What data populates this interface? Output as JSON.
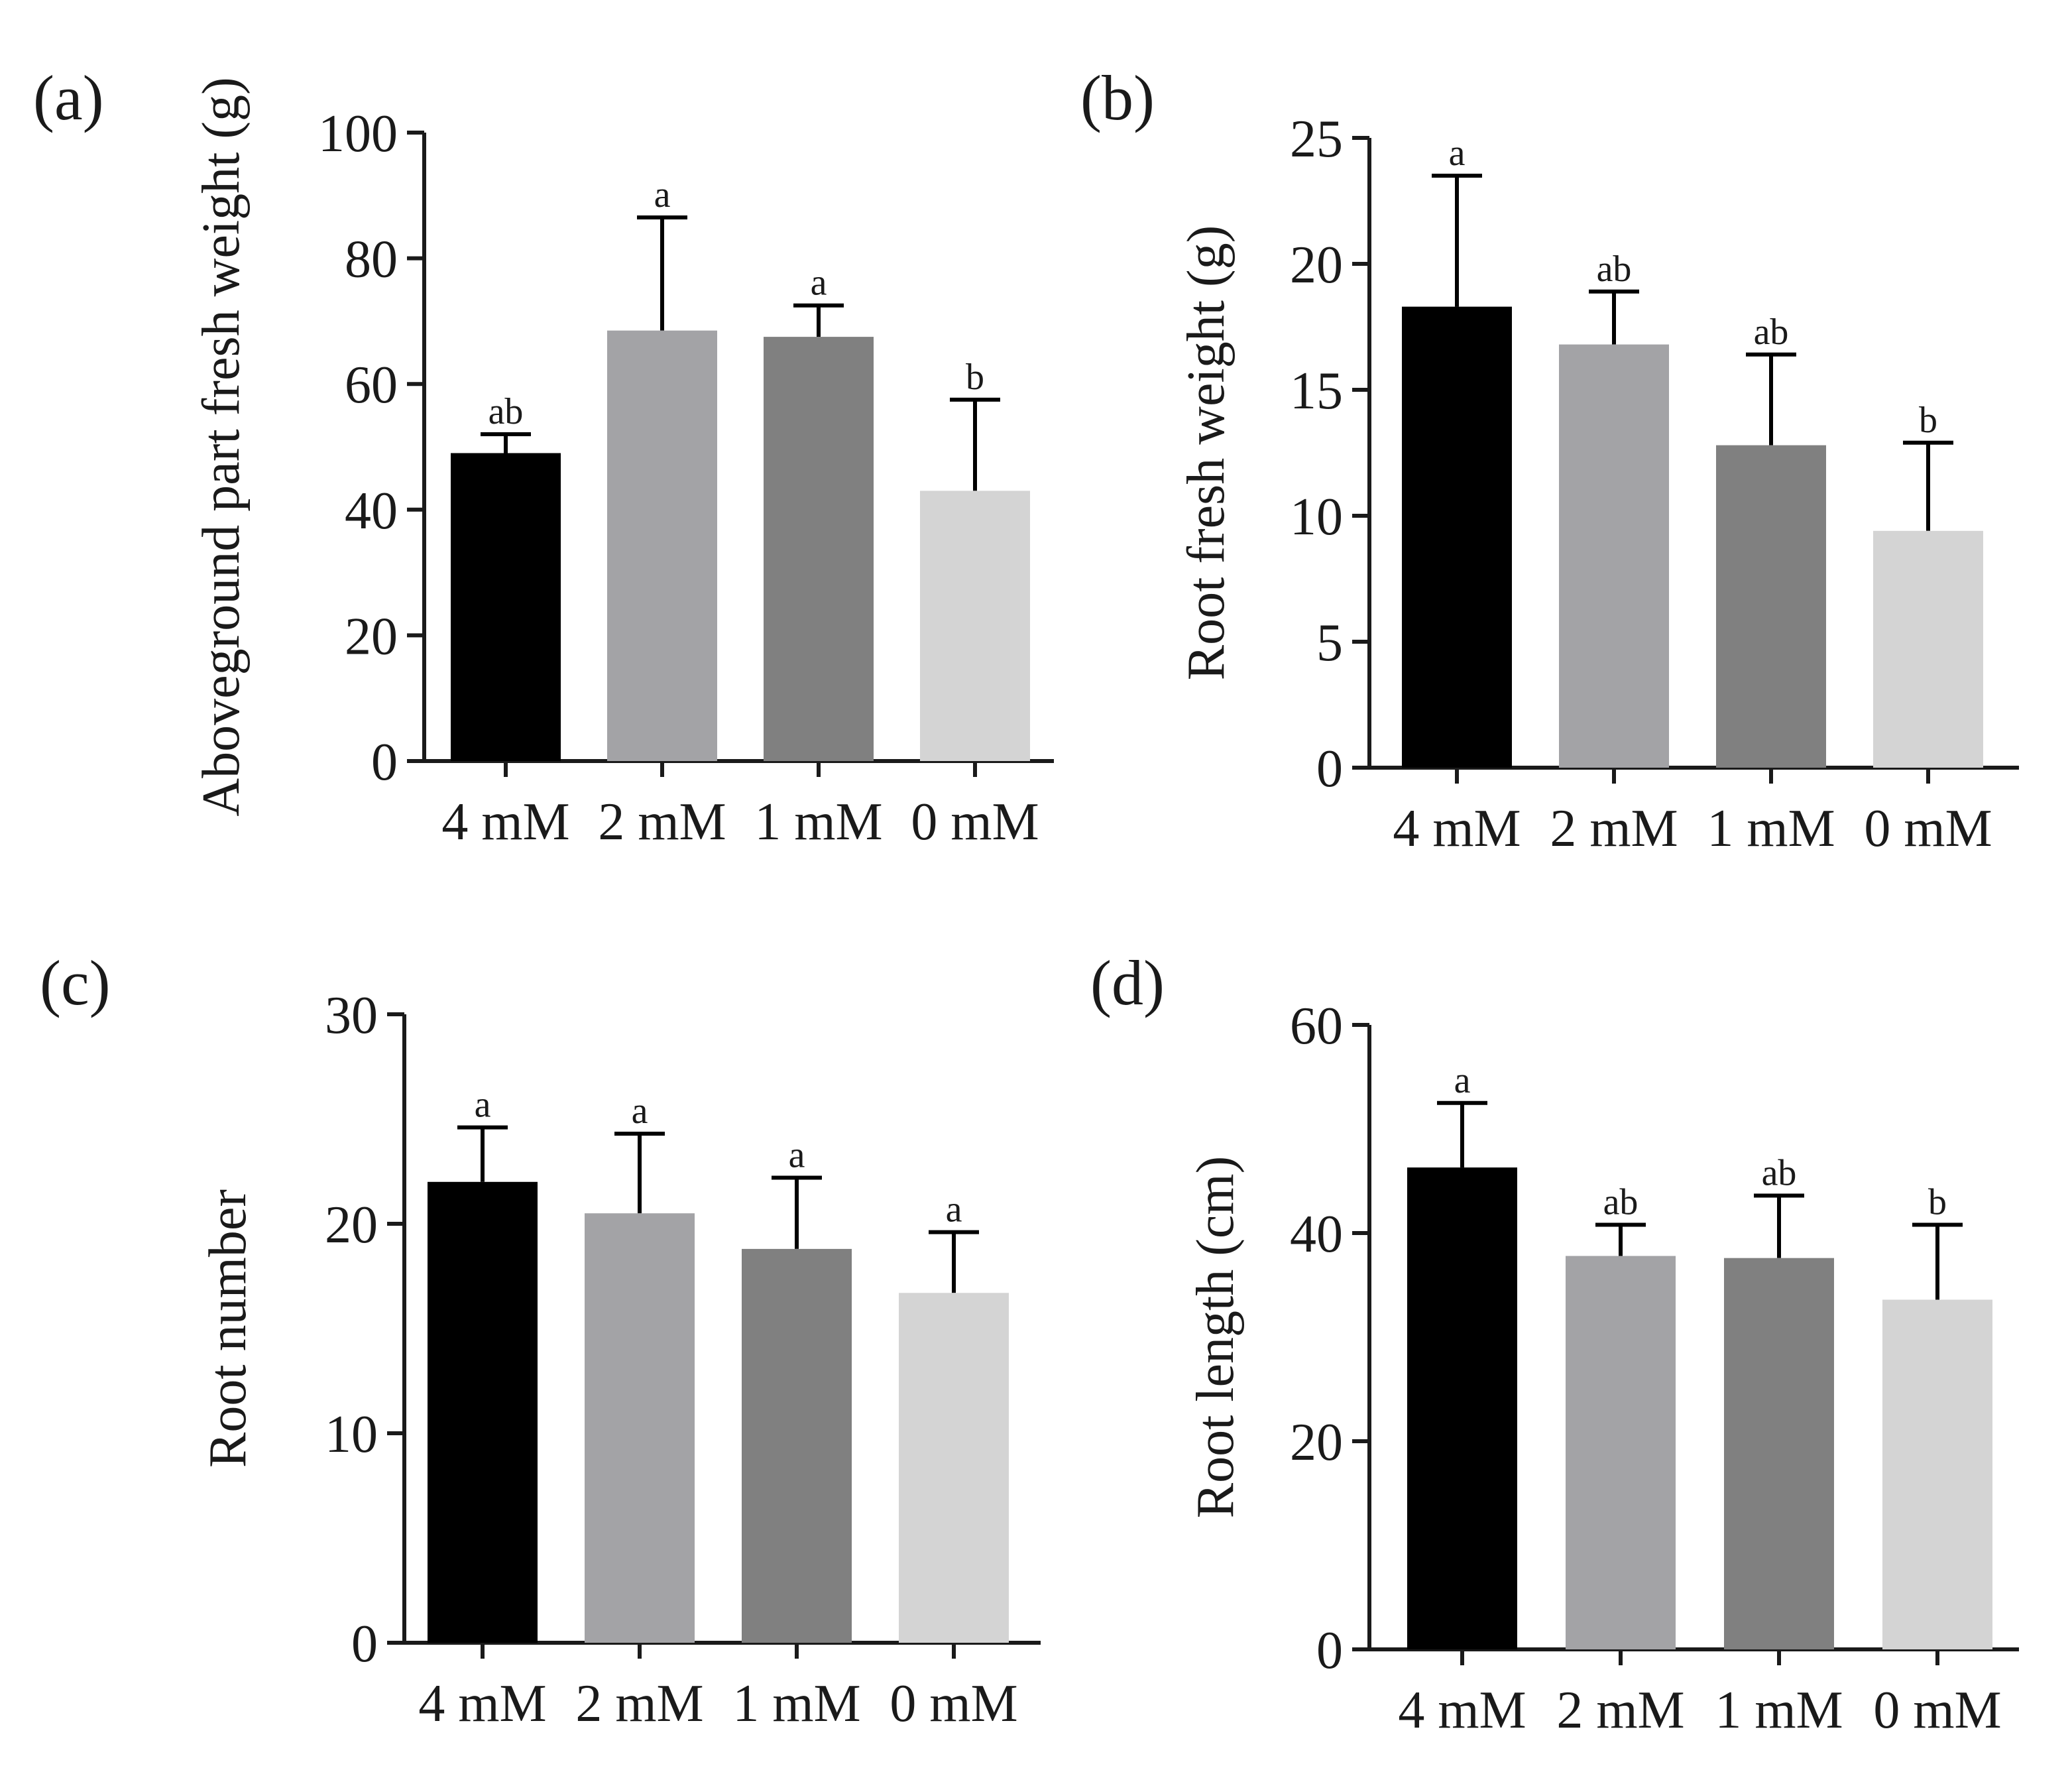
{
  "colors": {
    "axis": "#1a1a1a",
    "bar_4mM": "#000000",
    "bar_2mM": "#a3a3a6",
    "bar_1mM": "#808080",
    "bar_0mM": "#d4d4d4"
  },
  "chart_data": [
    {
      "type": "bar",
      "panel_label": "(a)",
      "categories": [
        "4 mM",
        "2 mM",
        "1 mM",
        "0 mM"
      ],
      "values": [
        49,
        68.5,
        67.5,
        43
      ],
      "errors": [
        3,
        18,
        5,
        14.5
      ],
      "significance": [
        "ab",
        "a",
        "a",
        "b"
      ],
      "ylabel": "Aboveground part fresh weight (g)",
      "ylim": [
        0,
        100
      ],
      "yticks": [
        0,
        20,
        40,
        60,
        80,
        100
      ]
    },
    {
      "type": "bar",
      "panel_label": "(b)",
      "categories": [
        "4 mM",
        "2 mM",
        "1 mM",
        "0 mM"
      ],
      "values": [
        18.3,
        16.8,
        12.8,
        9.4
      ],
      "errors": [
        5.2,
        2.1,
        3.6,
        3.5
      ],
      "significance": [
        "a",
        "ab",
        "ab",
        "b"
      ],
      "ylabel": "Root fresh weight (g)",
      "ylim": [
        0,
        25
      ],
      "yticks": [
        0,
        5,
        10,
        15,
        20,
        25
      ]
    },
    {
      "type": "bar",
      "panel_label": "(c)",
      "categories": [
        "4 mM",
        "2 mM",
        "1 mM",
        "0 mM"
      ],
      "values": [
        22,
        20.5,
        18.8,
        16.7
      ],
      "errors": [
        2.6,
        3.8,
        3.4,
        2.9
      ],
      "significance": [
        "a",
        "a",
        "a",
        "a"
      ],
      "ylabel": "Root number",
      "ylim": [
        0,
        30
      ],
      "yticks": [
        0,
        10,
        20,
        30
      ]
    },
    {
      "type": "bar",
      "panel_label": "(d)",
      "categories": [
        "4 mM",
        "2 mM",
        "1 mM",
        "0 mM"
      ],
      "values": [
        46.3,
        37.8,
        37.6,
        33.6
      ],
      "errors": [
        6.2,
        3.0,
        6.0,
        7.2
      ],
      "significance": [
        "a",
        "ab",
        "ab",
        "b"
      ],
      "ylabel": "Root length (cm)",
      "ylim": [
        0,
        60
      ],
      "yticks": [
        0,
        20,
        40,
        60
      ]
    }
  ]
}
